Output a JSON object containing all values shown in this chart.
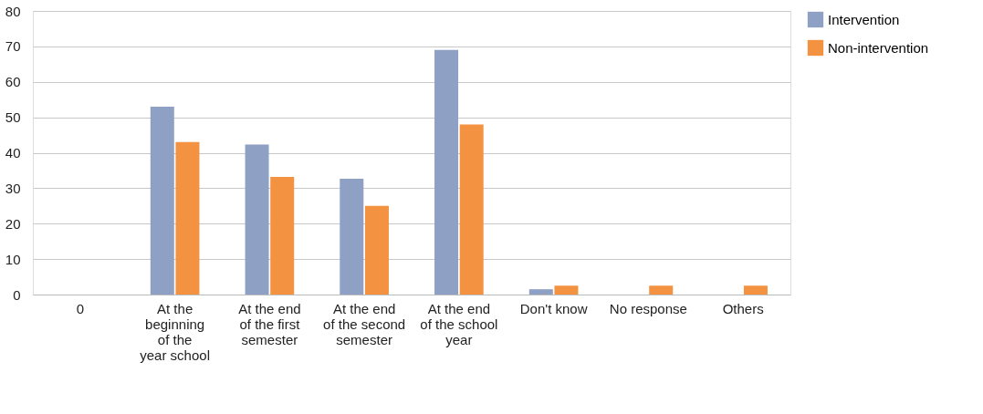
{
  "chart_data": {
    "type": "bar",
    "categories": [
      "0",
      "At the\nbeginning\nof the\nyear school",
      "At the end\nof the first\nsemester",
      "At the end\nof the second\nsemester",
      "At the end\nof the school\nyear",
      "Don't know",
      "No response",
      "Others"
    ],
    "series": [
      {
        "name": "Intervention",
        "color": "#8ea0c4",
        "values": [
          null,
          53,
          42.3,
          32.7,
          69,
          1.5,
          null,
          null
        ]
      },
      {
        "name": "Non-intervention",
        "color": "#f39240",
        "values": [
          null,
          43,
          33.2,
          25,
          48,
          2.5,
          2.5,
          2.5
        ]
      }
    ],
    "ylim": [
      0,
      80
    ],
    "yticks": [
      0,
      10,
      20,
      30,
      40,
      50,
      60,
      70,
      80
    ],
    "grid": "y",
    "legend": "right"
  }
}
